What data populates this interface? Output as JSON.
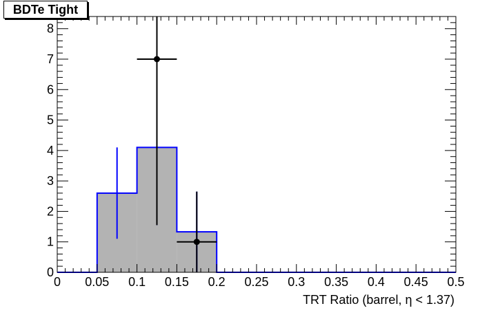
{
  "chart_data": {
    "type": "bar",
    "title": "BDTe Tight",
    "xlabel": "TRT Ratio (barrel,  η < 1.37)",
    "ylabel": "",
    "xlim": [
      0,
      0.5
    ],
    "ylim": [
      0,
      8.4
    ],
    "grid": false,
    "x_ticks": [
      "0",
      "0.05",
      "0.1",
      "0.15",
      "0.2",
      "0.25",
      "0.3",
      "0.35",
      "0.4",
      "0.45",
      "0.5"
    ],
    "y_ticks": [
      "0",
      "1",
      "2",
      "3",
      "4",
      "5",
      "6",
      "7",
      "8"
    ],
    "histogram": {
      "bin_edges": [
        0.05,
        0.1,
        0.15,
        0.2
      ],
      "values": [
        2.6,
        4.1,
        1.33
      ],
      "error_low": [
        1.1,
        1.55,
        0.0
      ],
      "error_high": [
        4.1,
        4.3,
        2.65
      ],
      "fill_color": "#b3b3b3",
      "line_color": "#0000ff"
    },
    "points": {
      "x": [
        0.125,
        0.175
      ],
      "y": [
        7,
        1
      ],
      "x_err": [
        0.025,
        0.025
      ],
      "y_low": [
        1.55,
        0
      ],
      "y_high": [
        8.4,
        2.65
      ],
      "color": "#000000"
    }
  }
}
